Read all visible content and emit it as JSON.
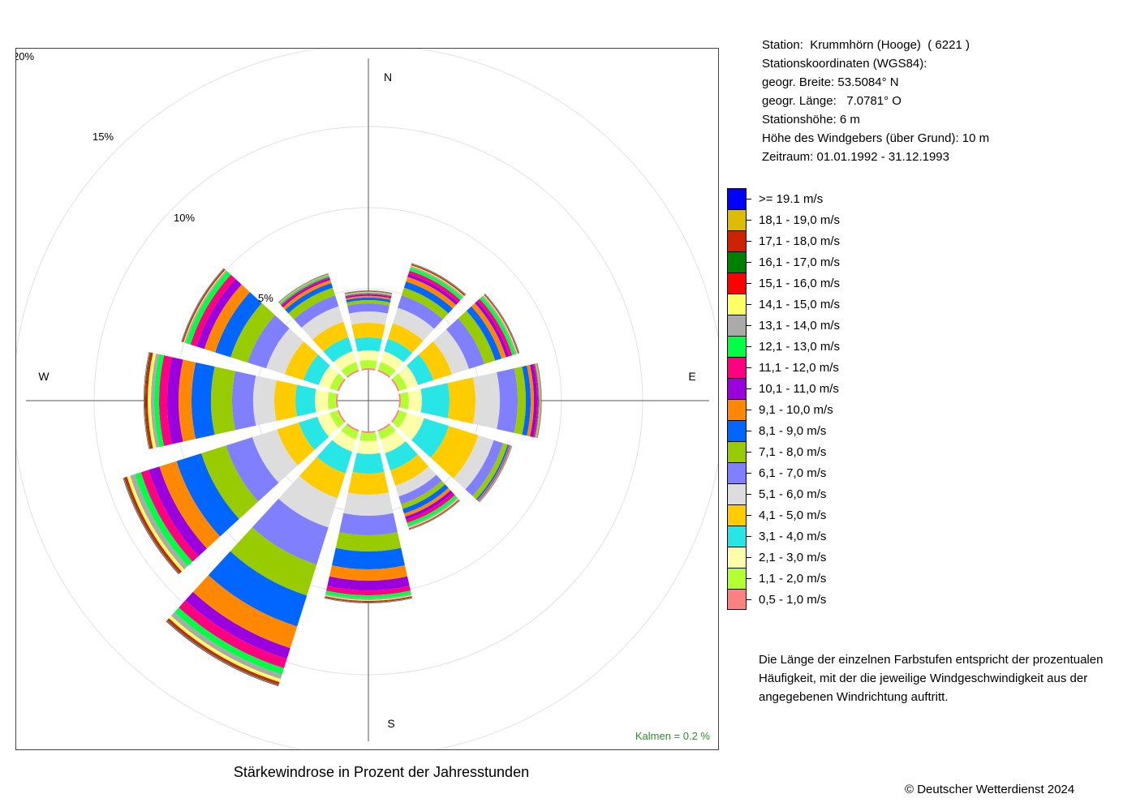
{
  "chart_data": {
    "type": "wind-rose",
    "title": "Stärkewindrose in Prozent der Jahresstunden",
    "directions": [
      "N",
      "E",
      "S",
      "W"
    ],
    "ring_labels": [
      "5%",
      "10%",
      "15%",
      "20%"
    ],
    "ring_values": [
      5,
      10,
      15,
      20
    ],
    "calm_label": "Kalmen  =  0.2 %",
    "speed_classes": [
      {
        "label": "0,5 - 1,0 m/s",
        "color": "#ff8080"
      },
      {
        "label": "1,1 - 2,0 m/s",
        "color": "#b3ff33"
      },
      {
        "label": "2,1 - 3,0 m/s",
        "color": "#ffffaa"
      },
      {
        "label": "3,1 - 4,0 m/s",
        "color": "#28e6e6"
      },
      {
        "label": "4,1 - 5,0 m/s",
        "color": "#ffcc00"
      },
      {
        "label": "5,1 - 6,0 m/s",
        "color": "#dddddd"
      },
      {
        "label": "6,1 - 7,0 m/s",
        "color": "#8080ff"
      },
      {
        "label": "7,1 - 8,0 m/s",
        "color": "#99cc00"
      },
      {
        "label": "8,1 - 9,0 m/s",
        "color": "#0066ff"
      },
      {
        "label": "9,1 - 10,0 m/s",
        "color": "#ff8800"
      },
      {
        "label": "10,1 - 11,0 m/s",
        "color": "#9900dd"
      },
      {
        "label": "11,1 - 12,0 m/s",
        "color": "#ff0080"
      },
      {
        "label": "12,1 - 13,0 m/s",
        "color": "#00ff44"
      },
      {
        "label": "13,1 - 14,0 m/s",
        "color": "#aaaaaa"
      },
      {
        "label": "14,1 - 15,0 m/s",
        "color": "#ffff66"
      },
      {
        "label": "15,1 - 16,0 m/s",
        "color": "#ff0000"
      },
      {
        "label": "16,1 - 17,0 m/s",
        "color": "#008000"
      },
      {
        "label": "17,1 - 18,0 m/s",
        "color": "#cc2200"
      },
      {
        "label": "18,1 - 19,0 m/s",
        "color": "#ddbb00"
      },
      {
        "label": ">= 19.1 m/s",
        "color": "#0000ff"
      }
    ],
    "sector_centers_deg": [
      0,
      30,
      60,
      90,
      120,
      150,
      180,
      210,
      240,
      270,
      300,
      330
    ],
    "sector_values": [
      [
        0.1,
        0.5,
        0.6,
        0.8,
        0.9,
        0.7,
        0.5,
        0.2,
        0.16,
        0.1,
        0.08,
        0.06,
        0.05,
        0.04,
        0.03,
        0.02,
        0.02,
        0.01,
        0.01,
        0.01
      ],
      [
        0.1,
        0.5,
        0.7,
        0.8,
        1.0,
        1.0,
        0.8,
        0.5,
        0.4,
        0.3,
        0.2,
        0.2,
        0.2,
        0.1,
        0.05,
        0.05,
        0.03,
        0.02,
        0.02,
        0.02
      ],
      [
        0.1,
        0.5,
        0.7,
        1.0,
        1.2,
        1.1,
        1.0,
        0.7,
        0.4,
        0.3,
        0.2,
        0.2,
        0.2,
        0.1,
        0.05,
        0.03,
        0.02,
        0.02,
        0.02,
        0.02
      ],
      [
        0.1,
        0.5,
        0.8,
        1.7,
        1.6,
        1.5,
        1.1,
        0.5,
        0.3,
        0.2,
        0.2,
        0.1,
        0.05,
        0.05,
        0.02,
        0.02,
        0.01,
        0.01,
        0.01,
        0.01
      ],
      [
        0.1,
        0.5,
        1.1,
        1.6,
        1.9,
        1.0,
        0.6,
        0.3,
        0.1,
        0.05,
        0.03,
        0.02,
        0.02,
        0.01,
        0.01,
        0.01,
        0.01,
        0.01,
        0.01,
        0.01
      ],
      [
        0.1,
        0.5,
        0.9,
        1.1,
        1.0,
        0.7,
        0.5,
        0.3,
        0.3,
        0.2,
        0.2,
        0.2,
        0.2,
        0.1,
        0.05,
        0.03,
        0.02,
        0.02,
        0.02,
        0.02
      ],
      [
        0.1,
        0.5,
        0.8,
        1.2,
        1.3,
        1.3,
        1.2,
        1.0,
        1.1,
        0.7,
        0.6,
        0.3,
        0.2,
        0.1,
        0.05,
        0.05,
        0.03,
        0.02,
        0.02,
        0.02
      ],
      [
        0.1,
        0.5,
        0.8,
        1.4,
        1.6,
        1.9,
        2.4,
        2.0,
        2.0,
        1.4,
        0.7,
        0.6,
        0.4,
        0.3,
        0.2,
        0.1,
        0.05,
        0.05,
        0.03,
        0.03
      ],
      [
        0.1,
        0.5,
        0.8,
        1.2,
        1.4,
        1.6,
        1.7,
        1.6,
        1.6,
        1.1,
        0.7,
        0.5,
        0.4,
        0.3,
        0.2,
        0.1,
        0.05,
        0.05,
        0.03,
        0.03
      ],
      [
        0.1,
        0.5,
        0.8,
        1.2,
        1.3,
        1.3,
        1.3,
        1.3,
        1.2,
        0.8,
        0.7,
        0.5,
        0.3,
        0.2,
        0.2,
        0.1,
        0.05,
        0.05,
        0.03,
        0.02
      ],
      [
        0.1,
        0.5,
        0.7,
        1.0,
        1.2,
        1.2,
        1.2,
        1.1,
        1.0,
        0.7,
        0.5,
        0.4,
        0.3,
        0.1,
        0.05,
        0.05,
        0.03,
        0.02,
        0.02,
        0.02
      ],
      [
        0.1,
        0.5,
        0.7,
        0.9,
        1.0,
        1.0,
        0.7,
        0.5,
        0.3,
        0.2,
        0.1,
        0.1,
        0.1,
        0.05,
        0.02,
        0.02,
        0.01,
        0.01,
        0.01,
        0.01
      ]
    ]
  },
  "station_info": [
    "Station:  Krummhörn (Hooge)  ( 6221 )",
    "Stationskoordinaten (WGS84):",
    "geogr. Breite: 53.5084° N",
    "geogr. Länge:   7.0781° O",
    "Stationshöhe: 6 m",
    "Höhe des Windgebers (über Grund): 10 m",
    "Zeitraum: 01.01.1992 - 31.12.1993"
  ],
  "explanation": "Die Länge der einzelnen Farbstufen entspricht der prozentualen Häufigkeit, mit der die jeweilige Windgeschwindigkeit aus der angegebenen Windrichtung auftritt.",
  "copyright": "© Deutscher Wetterdienst  2024"
}
